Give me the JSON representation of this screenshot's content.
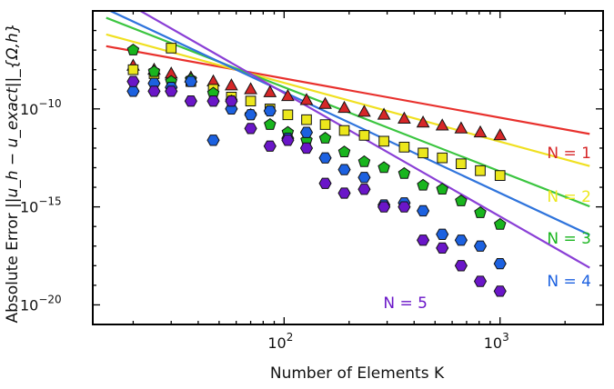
{
  "chart_data": {
    "type": "scatter",
    "title": "",
    "xlabel": "Number of Elements K",
    "ylabel": {
      "prefix": "Absolute Error ",
      "math": "||u_h − u_exact||_{Ω,h}"
    },
    "xscale": "log",
    "yscale": "log",
    "xlim": [
      13,
      3000
    ],
    "ylim_exp": [
      -21,
      -5
    ],
    "xticks": [
      {
        "value": 100,
        "base": "10",
        "exp": "2"
      },
      {
        "value": 1000,
        "base": "10",
        "exp": "3"
      }
    ],
    "yticks": [
      {
        "value": -10,
        "base": "10",
        "exp": "−10"
      },
      {
        "value": -15,
        "base": "10",
        "exp": "−15"
      },
      {
        "value": -20,
        "base": "10",
        "exp": "−20"
      }
    ],
    "grid": false,
    "legend": "none",
    "series": [
      {
        "name": "N = 1",
        "color": "#d62728",
        "marker": "triangle",
        "line_color": "#e8302c",
        "fit": {
          "x0": 15,
          "y0": -6.8,
          "slope": -2.0
        },
        "x": [
          20,
          25,
          30,
          37,
          47,
          57,
          70,
          86,
          104,
          127,
          155,
          190,
          235,
          290,
          360,
          440,
          540,
          660,
          810,
          1000
        ],
        "y": [
          -7.8,
          -8.0,
          -8.2,
          -8.4,
          -8.6,
          -8.8,
          -9.0,
          -9.15,
          -9.35,
          -9.55,
          -9.75,
          -9.95,
          -10.15,
          -10.3,
          -10.5,
          -10.7,
          -10.85,
          -11.0,
          -11.2,
          -11.35
        ]
      },
      {
        "name": "N = 2",
        "color": "#ece71c",
        "marker": "square",
        "line_color": "#f0e020",
        "fit": {
          "x0": 15,
          "y0": -6.2,
          "slope": -3.0
        },
        "x": [
          20,
          25,
          30,
          37,
          47,
          57,
          70,
          86,
          104,
          127,
          155,
          190,
          235,
          290,
          360,
          440,
          540,
          660,
          810,
          1000
        ],
        "y": [
          -8.0,
          -8.2,
          -6.9,
          -8.6,
          -9.0,
          -9.4,
          -9.6,
          -10.0,
          -10.3,
          -10.55,
          -10.8,
          -11.1,
          -11.35,
          -11.65,
          -11.95,
          -12.25,
          -12.5,
          -12.8,
          -13.15,
          -13.4
        ]
      },
      {
        "name": "N = 3",
        "color": "#19b51e",
        "marker": "pentagon",
        "line_color": "#3bc540",
        "fit": {
          "x0": 15,
          "y0": -5.35,
          "slope": -4.3
        },
        "x": [
          20,
          25,
          30,
          37,
          47,
          57,
          70,
          86,
          104,
          127,
          155,
          190,
          235,
          290,
          360,
          440,
          540,
          660,
          810,
          1000
        ],
        "y": [
          -7.0,
          -8.1,
          -8.6,
          -8.5,
          -9.2,
          -9.6,
          -10.3,
          -10.8,
          -11.2,
          -11.6,
          -11.5,
          -12.2,
          -12.7,
          -13.0,
          -13.3,
          -13.9,
          -14.1,
          -14.7,
          -15.3,
          -15.9
        ]
      },
      {
        "name": "N = 4",
        "color": "#1c61e0",
        "marker": "hexagon",
        "line_color": "#2f74dc",
        "fit": {
          "x0": 15,
          "y0": -4.9,
          "slope": -5.15
        },
        "x": [
          20,
          25,
          30,
          37,
          47,
          57,
          70,
          86,
          104,
          127,
          155,
          190,
          235,
          290,
          360,
          440,
          540,
          660,
          810,
          1000
        ],
        "y": [
          -9.1,
          -8.7,
          -8.9,
          -8.6,
          -11.6,
          -10.0,
          -10.3,
          -10.1,
          -11.5,
          -11.2,
          -12.5,
          -13.1,
          -13.5,
          -14.9,
          -14.8,
          -15.2,
          -16.4,
          -16.7,
          -17.0,
          -17.9
        ]
      },
      {
        "name": "N = 5",
        "color": "#6a16c8",
        "marker": "hexagon",
        "line_color": "#8a3fd6",
        "fit": {
          "x0": 15,
          "y0": -4.0,
          "slope": -6.3
        },
        "x": [
          20,
          25,
          30,
          37,
          47,
          57,
          70,
          86,
          104,
          127,
          155,
          190,
          235,
          290,
          360,
          440,
          540,
          660,
          810,
          1000
        ],
        "y": [
          -8.6,
          -9.1,
          -9.1,
          -9.6,
          -9.6,
          -9.6,
          -11.0,
          -11.9,
          -11.6,
          -12.0,
          -13.8,
          -14.3,
          -14.1,
          -15.0,
          -15.0,
          -16.7,
          -17.1,
          -18.0,
          -18.8,
          -19.3
        ]
      }
    ]
  }
}
